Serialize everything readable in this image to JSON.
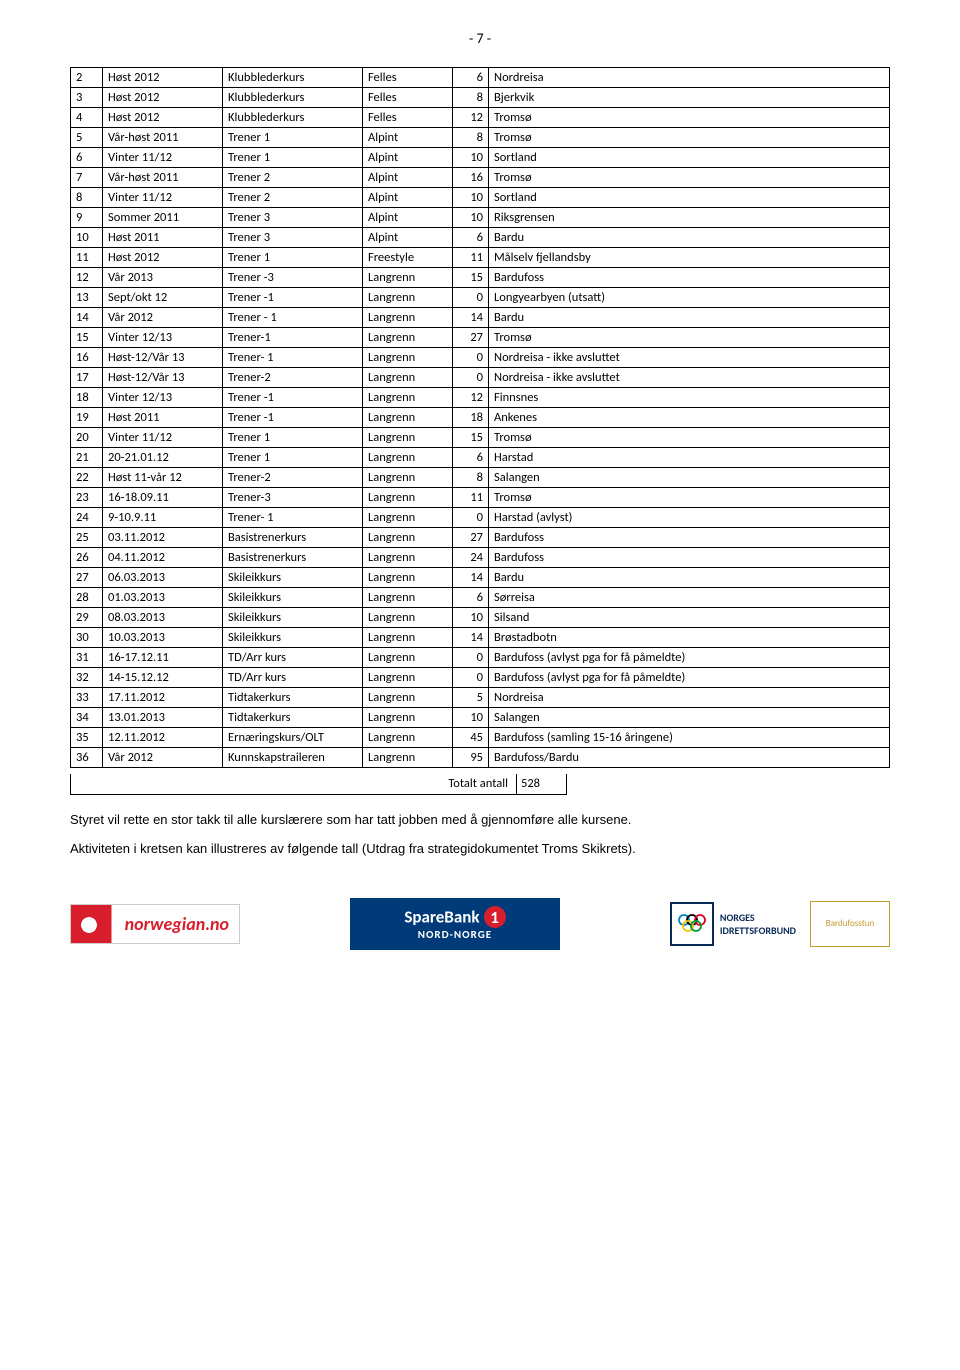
{
  "page_number": "- 7 -",
  "rows": [
    {
      "n": "2",
      "time": "Høst 2012",
      "type": "Klubblederkurs",
      "cat": "Felles",
      "count": "6",
      "loc": "Nordreisa"
    },
    {
      "n": "3",
      "time": "Høst 2012",
      "type": "Klubblederkurs",
      "cat": "Felles",
      "count": "8",
      "loc": "Bjerkvik"
    },
    {
      "n": "4",
      "time": "Høst 2012",
      "type": "Klubblederkurs",
      "cat": "Felles",
      "count": "12",
      "loc": "Tromsø"
    },
    {
      "n": "5",
      "time": "Vår-høst 2011",
      "type": "Trener 1",
      "cat": "Alpint",
      "count": "8",
      "loc": "Tromsø"
    },
    {
      "n": "6",
      "time": "Vinter 11/12",
      "type": "Trener 1",
      "cat": "Alpint",
      "count": "10",
      "loc": "Sortland"
    },
    {
      "n": "7",
      "time": "Vår-høst 2011",
      "type": "Trener 2",
      "cat": "Alpint",
      "count": "16",
      "loc": "Tromsø"
    },
    {
      "n": "8",
      "time": "Vinter 11/12",
      "type": "Trener 2",
      "cat": "Alpint",
      "count": "10",
      "loc": "Sortland"
    },
    {
      "n": "9",
      "time": "Sommer 2011",
      "type": "Trener 3",
      "cat": "Alpint",
      "count": "10",
      "loc": "Riksgrensen"
    },
    {
      "n": "10",
      "time": "Høst 2011",
      "type": "Trener 3",
      "cat": "Alpint",
      "count": "6",
      "loc": "Bardu"
    },
    {
      "n": "11",
      "time": "Høst 2012",
      "type": "Trener 1",
      "cat": "Freestyle",
      "count": "11",
      "loc": "Målselv fjellandsby"
    },
    {
      "n": "12",
      "time": "Vår 2013",
      "type": "Trener -3",
      "cat": "Langrenn",
      "count": "15",
      "loc": "Bardufoss"
    },
    {
      "n": "13",
      "time": "Sept/okt 12",
      "type": "Trener -1",
      "cat": "Langrenn",
      "count": "0",
      "loc": "Longyearbyen (utsatt)"
    },
    {
      "n": "14",
      "time": "Vår 2012",
      "type": "Trener - 1",
      "cat": "Langrenn",
      "count": "14",
      "loc": "Bardu"
    },
    {
      "n": "15",
      "time": "Vinter 12/13",
      "type": "Trener-1",
      "cat": "Langrenn",
      "count": "27",
      "loc": "Tromsø"
    },
    {
      "n": "16",
      "time": "Høst-12/Vår 13",
      "type": "Trener- 1",
      "cat": "Langrenn",
      "count": "0",
      "loc": "Nordreisa - ikke avsluttet"
    },
    {
      "n": "17",
      "time": "Høst-12/Vår 13",
      "type": "Trener-2",
      "cat": "Langrenn",
      "count": "0",
      "loc": "Nordreisa - ikke avsluttet"
    },
    {
      "n": "18",
      "time": "Vinter 12/13",
      "type": "Trener -1",
      "cat": "Langrenn",
      "count": "12",
      "loc": "Finnsnes"
    },
    {
      "n": "19",
      "time": "Høst 2011",
      "type": "Trener -1",
      "cat": "Langrenn",
      "count": "18",
      "loc": "Ankenes"
    },
    {
      "n": "20",
      "time": "Vinter 11/12",
      "type": "Trener 1",
      "cat": "Langrenn",
      "count": "15",
      "loc": "Tromsø"
    },
    {
      "n": "21",
      "time": "20-21.01.12",
      "type": "Trener 1",
      "cat": "Langrenn",
      "count": "6",
      "loc": "Harstad"
    },
    {
      "n": "22",
      "time": "Høst 11-vår 12",
      "type": "Trener-2",
      "cat": "Langrenn",
      "count": "8",
      "loc": "Salangen"
    },
    {
      "n": "23",
      "time": "16-18.09.11",
      "type": "Trener-3",
      "cat": "Langrenn",
      "count": "11",
      "loc": "Tromsø"
    },
    {
      "n": "24",
      "time": "9-10.9.11",
      "type": "Trener- 1",
      "cat": "Langrenn",
      "count": "0",
      "loc": "Harstad (avlyst)"
    },
    {
      "n": "25",
      "time": "03.11.2012",
      "type": "Basistrenerkurs",
      "cat": "Langrenn",
      "count": "27",
      "loc": "Bardufoss"
    },
    {
      "n": "26",
      "time": "04.11.2012",
      "type": "Basistrenerkurs",
      "cat": "Langrenn",
      "count": "24",
      "loc": "Bardufoss"
    },
    {
      "n": "27",
      "time": "06.03.2013",
      "type": "Skileikkurs",
      "cat": "Langrenn",
      "count": "14",
      "loc": "Bardu"
    },
    {
      "n": "28",
      "time": "01.03.2013",
      "type": "Skileikkurs",
      "cat": "Langrenn",
      "count": "6",
      "loc": "Sørreisa"
    },
    {
      "n": "29",
      "time": "08.03.2013",
      "type": "Skileikkurs",
      "cat": "Langrenn",
      "count": "10",
      "loc": "Silsand"
    },
    {
      "n": "30",
      "time": "10.03.2013",
      "type": "Skileikkurs",
      "cat": "Langrenn",
      "count": "14",
      "loc": "Brøstadbotn"
    },
    {
      "n": "31",
      "time": "16-17.12.11",
      "type": "TD/Arr kurs",
      "cat": "Langrenn",
      "count": "0",
      "loc": "Bardufoss (avlyst pga for få påmeldte)"
    },
    {
      "n": "32",
      "time": "14-15.12.12",
      "type": "TD/Arr kurs",
      "cat": "Langrenn",
      "count": "0",
      "loc": "Bardufoss (avlyst pga for få påmeldte)"
    },
    {
      "n": "33",
      "time": "17.11.2012",
      "type": "Tidtakerkurs",
      "cat": "Langrenn",
      "count": "5",
      "loc": "Nordreisa"
    },
    {
      "n": "34",
      "time": "13.01.2013",
      "type": "Tidtakerkurs",
      "cat": "Langrenn",
      "count": "10",
      "loc": "Salangen"
    },
    {
      "n": "35",
      "time": "12.11.2012",
      "type": "Ernæringskurs/OLT",
      "cat": "Langrenn",
      "count": "45",
      "loc": "Bardufoss (samling 15-16 åringene)"
    },
    {
      "n": "36",
      "time": "Vår 2012",
      "type": "Kunnskapstraileren",
      "cat": "Langrenn",
      "count": "95",
      "loc": "Bardufoss/Bardu"
    }
  ],
  "summary": {
    "label": "Totalt antall",
    "value": "528"
  },
  "para1": "Styret vil rette en stor takk til alle kurslærere som har tatt jobben med å gjennomføre alle kursene.",
  "para2": "Aktiviteten i kretsen kan illustreres av følgende tall (Utdrag fra strategidokumentet Troms Skikrets).",
  "logos": {
    "norwegian": "norwegian.no",
    "sparebank_line1": "SpareBank",
    "sparebank_line2": "NORD-NORGE",
    "nif_line1": "NORGES",
    "nif_line2": "IDRETTSFORBUND",
    "bardufosstun": "Bardufosstun"
  },
  "colors": {
    "text": "#000000",
    "border": "#000000",
    "sparebank_bg": "#003a78",
    "red": "#d81e2c",
    "nif": "#0a2b57"
  }
}
